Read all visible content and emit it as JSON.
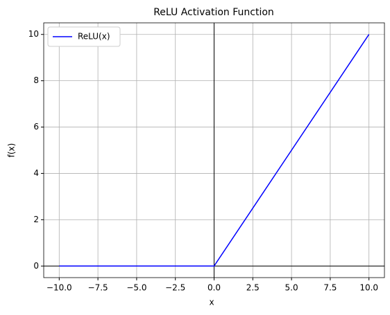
{
  "chart_data": {
    "type": "line",
    "title": "ReLU Activation Function",
    "x_label": "x",
    "y_label": "f(x)",
    "x": [
      -10,
      0,
      10
    ],
    "series": [
      {
        "name": "ReLU(x)",
        "color": "#0000ff",
        "values": [
          0,
          0,
          10
        ]
      }
    ],
    "xlim": [
      -11,
      11
    ],
    "ylim": [
      -0.5,
      10.5
    ],
    "xticks": [
      {
        "value": -10,
        "label": "−10.0"
      },
      {
        "value": -7.5,
        "label": "−7.5"
      },
      {
        "value": -5,
        "label": "−5.0"
      },
      {
        "value": -2.5,
        "label": "−2.5"
      },
      {
        "value": 0,
        "label": "0.0"
      },
      {
        "value": 2.5,
        "label": "2.5"
      },
      {
        "value": 5,
        "label": "5.0"
      },
      {
        "value": 7.5,
        "label": "7.5"
      },
      {
        "value": 10,
        "label": "10.0"
      }
    ],
    "yticks": [
      0,
      2,
      4,
      6,
      8,
      10
    ],
    "grid": true,
    "legend": "upper-left",
    "axhline": 0,
    "axvline": 0
  }
}
